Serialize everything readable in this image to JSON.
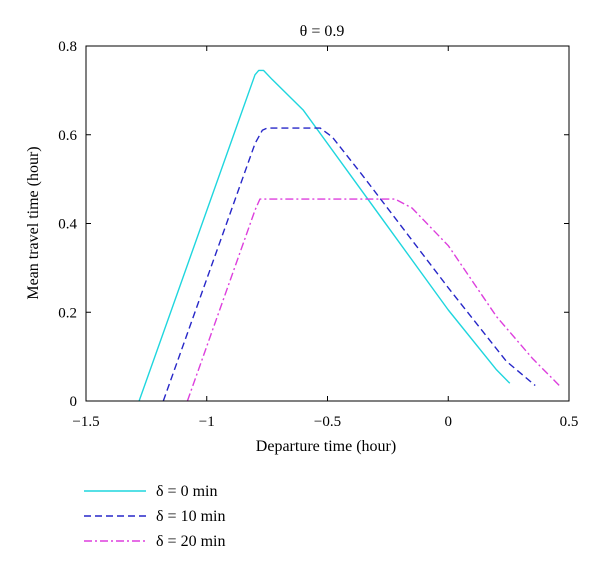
{
  "chart_data": {
    "type": "line",
    "title": "θ = 0.9",
    "xlabel": "Departure time (hour)",
    "ylabel": "Mean travel time (hour)",
    "xlim": [
      -1.5,
      0.5
    ],
    "ylim": [
      0,
      0.8
    ],
    "xticks": [
      -1.5,
      -1,
      -0.5,
      0,
      0.5
    ],
    "xtick_labels": [
      "−1.5",
      "−1",
      "−0.5",
      "0",
      "0.5"
    ],
    "yticks": [
      0,
      0.2,
      0.4,
      0.6,
      0.8
    ],
    "ytick_labels": [
      "0",
      "0.2",
      "0.4",
      "0.6",
      "0.8"
    ],
    "grid": false,
    "legend_position": "below",
    "series": [
      {
        "name": "δ = 0 min",
        "color": "#1fd6de",
        "style": "solid",
        "points": [
          [
            -1.28,
            0.0
          ],
          [
            -0.8,
            0.735
          ],
          [
            -0.785,
            0.745
          ],
          [
            -0.765,
            0.745
          ],
          [
            -0.73,
            0.725
          ],
          [
            -0.6,
            0.655
          ],
          [
            0.0,
            0.205
          ],
          [
            0.2,
            0.07
          ],
          [
            0.255,
            0.04
          ]
        ]
      },
      {
        "name": "δ = 10 min",
        "color": "#2727c8",
        "style": "dashed",
        "points": [
          [
            -1.18,
            0.0
          ],
          [
            -0.8,
            0.58
          ],
          [
            -0.77,
            0.61
          ],
          [
            -0.75,
            0.615
          ],
          [
            -0.53,
            0.615
          ],
          [
            -0.48,
            0.595
          ],
          [
            -0.35,
            0.505
          ],
          [
            0.0,
            0.255
          ],
          [
            0.24,
            0.09
          ],
          [
            0.36,
            0.035
          ]
        ]
      },
      {
        "name": "δ = 20 min",
        "color": "#dd3fdd",
        "style": "dashdot",
        "points": [
          [
            -1.08,
            0.0
          ],
          [
            -0.8,
            0.43
          ],
          [
            -0.78,
            0.455
          ],
          [
            -0.76,
            0.455
          ],
          [
            -0.22,
            0.455
          ],
          [
            -0.15,
            0.435
          ],
          [
            0.0,
            0.35
          ],
          [
            0.2,
            0.19
          ],
          [
            0.35,
            0.095
          ],
          [
            0.46,
            0.035
          ]
        ]
      }
    ]
  }
}
